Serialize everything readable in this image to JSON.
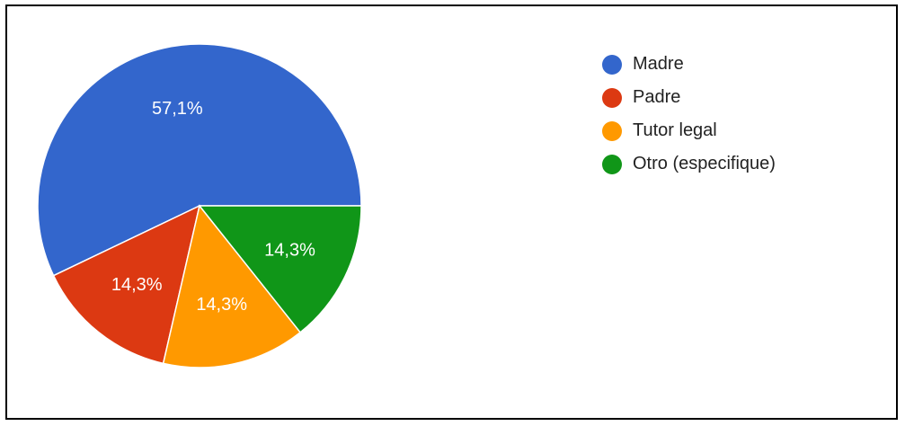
{
  "chart_data": {
    "type": "pie",
    "categories": [
      "Madre",
      "Padre",
      "Tutor legal",
      "Otro (especifique)"
    ],
    "values": [
      57.1,
      14.3,
      14.3,
      14.3
    ],
    "value_labels": [
      "57,1%",
      "14,3%",
      "14,3%",
      "14,3%"
    ],
    "colors": [
      "#3366cc",
      "#dc3912",
      "#ff9900",
      "#109618"
    ],
    "title": "",
    "legend_position": "right"
  }
}
